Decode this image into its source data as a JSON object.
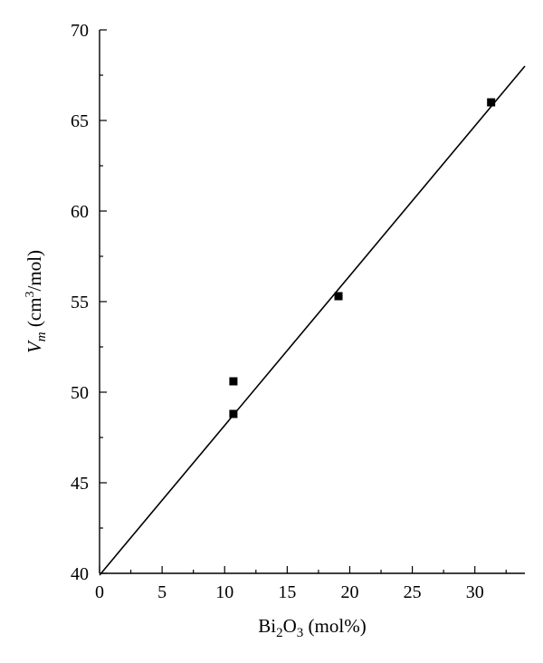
{
  "chart_data": {
    "type": "scatter",
    "title": "",
    "xlabel": {
      "base": "Bi",
      "sub1": "2",
      "mid": "O",
      "sub2": "3",
      "suffix": " (mol%)"
    },
    "ylabel": {
      "var": "V",
      "var_sub": "m",
      "pre": " (cm",
      "sup": "3",
      "post": "/mol)"
    },
    "xlim": [
      0,
      34
    ],
    "ylim": [
      40,
      70
    ],
    "xticks": [
      0,
      5,
      10,
      15,
      20,
      25,
      30
    ],
    "yticks": [
      40,
      45,
      50,
      55,
      60,
      65,
      70
    ],
    "grid": false,
    "series": [
      {
        "marker": "square",
        "color": "#000000",
        "points": [
          {
            "x": 10.7,
            "y": 50.6
          },
          {
            "x": 10.7,
            "y": 48.8
          },
          {
            "x": 19.1,
            "y": 55.3
          },
          {
            "x": 31.3,
            "y": 66.0
          }
        ]
      }
    ],
    "fit_line": {
      "color": "#000000",
      "points": [
        {
          "x": 0,
          "y": 39.9
        },
        {
          "x": 34,
          "y": 68.0
        }
      ]
    }
  }
}
